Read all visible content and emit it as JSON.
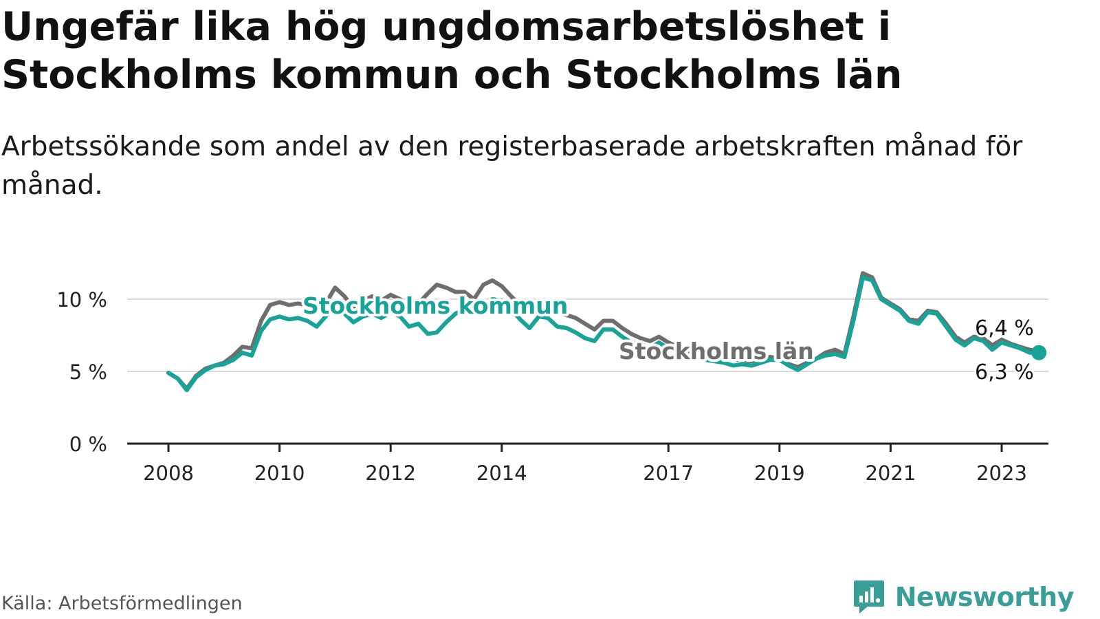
{
  "title": "Ungefär lika hög ungdomsarbetslöshet i Stockholms kommun och Stockholms län",
  "subtitle": "Arbetssökande som andel av den registerbaserade arbetskraften månad för månad.",
  "source": "Källa: Arbetsförmedlingen",
  "brand": {
    "name": "Newsworthy",
    "icon": "bar-chart-badge-icon",
    "color": "#3a9e98"
  },
  "colors": {
    "kommun": "#17a398",
    "lan": "#6e6e6e",
    "grid": "#d9d9d9",
    "axis": "#222222"
  },
  "chart_data": {
    "type": "line",
    "title": "Ungefär lika hög ungdomsarbetslöshet i Stockholms kommun och Stockholms län",
    "subtitle": "Arbetssökande som andel av den registerbaserade arbetskraften månad för månad.",
    "xlabel": "",
    "ylabel": "",
    "xlim": [
      2007.4,
      2024.0
    ],
    "ylim": [
      0,
      12
    ],
    "grid": true,
    "legend": "inline",
    "x_ticks": [
      2008,
      2010,
      2012,
      2014,
      2017,
      2019,
      2021,
      2023
    ],
    "x_tick_labels": [
      "2008",
      "2010",
      "2012",
      "2014",
      "2017",
      "2019",
      "2021",
      "2023"
    ],
    "y_ticks": [
      0,
      5,
      10
    ],
    "y_tick_labels": [
      "0 %",
      "5 %",
      "10 %"
    ],
    "series": [
      {
        "name": "Stockholms län",
        "key": "lan",
        "end_label": "6,4 %",
        "points": [
          [
            2008.0,
            4.9
          ],
          [
            2008.17,
            4.5
          ],
          [
            2008.33,
            3.8
          ],
          [
            2008.5,
            4.7
          ],
          [
            2008.67,
            5.2
          ],
          [
            2008.83,
            5.4
          ],
          [
            2009.0,
            5.6
          ],
          [
            2009.17,
            6.1
          ],
          [
            2009.33,
            6.7
          ],
          [
            2009.5,
            6.6
          ],
          [
            2009.67,
            8.5
          ],
          [
            2009.83,
            9.6
          ],
          [
            2010.0,
            9.8
          ],
          [
            2010.17,
            9.6
          ],
          [
            2010.33,
            9.7
          ],
          [
            2010.5,
            9.6
          ],
          [
            2010.67,
            9.2
          ],
          [
            2010.83,
            9.7
          ],
          [
            2011.0,
            10.8
          ],
          [
            2011.17,
            10.2
          ],
          [
            2011.33,
            9.4
          ],
          [
            2011.5,
            9.9
          ],
          [
            2011.67,
            10.2
          ],
          [
            2011.83,
            9.9
          ],
          [
            2012.0,
            10.3
          ],
          [
            2012.17,
            10.0
          ],
          [
            2012.33,
            9.3
          ],
          [
            2012.5,
            9.7
          ],
          [
            2012.67,
            10.4
          ],
          [
            2012.83,
            11.0
          ],
          [
            2013.0,
            10.8
          ],
          [
            2013.17,
            10.5
          ],
          [
            2013.33,
            10.5
          ],
          [
            2013.5,
            10.0
          ],
          [
            2013.67,
            11.0
          ],
          [
            2013.83,
            11.3
          ],
          [
            2014.0,
            10.9
          ],
          [
            2014.17,
            10.2
          ],
          [
            2014.33,
            9.6
          ],
          [
            2014.5,
            9.0
          ],
          [
            2014.67,
            9.1
          ],
          [
            2014.83,
            9.3
          ],
          [
            2015.0,
            9.1
          ],
          [
            2015.17,
            8.9
          ],
          [
            2015.33,
            8.7
          ],
          [
            2015.5,
            8.3
          ],
          [
            2015.67,
            7.9
          ],
          [
            2015.83,
            8.5
          ],
          [
            2016.0,
            8.5
          ],
          [
            2016.17,
            8.0
          ],
          [
            2016.33,
            7.6
          ],
          [
            2016.5,
            7.3
          ],
          [
            2016.67,
            7.1
          ],
          [
            2016.83,
            7.4
          ],
          [
            2017.0,
            7.0
          ],
          [
            2017.17,
            6.7
          ],
          [
            2017.33,
            6.4
          ],
          [
            2017.5,
            6.2
          ],
          [
            2017.67,
            6.1
          ],
          [
            2017.83,
            6.0
          ],
          [
            2018.0,
            5.9
          ],
          [
            2018.17,
            5.8
          ],
          [
            2018.33,
            5.8
          ],
          [
            2018.5,
            5.7
          ],
          [
            2018.67,
            5.9
          ],
          [
            2018.83,
            6.0
          ],
          [
            2019.0,
            5.9
          ],
          [
            2019.17,
            5.5
          ],
          [
            2019.33,
            5.3
          ],
          [
            2019.5,
            5.6
          ],
          [
            2019.67,
            5.9
          ],
          [
            2019.83,
            6.3
          ],
          [
            2020.0,
            6.5
          ],
          [
            2020.17,
            6.2
          ],
          [
            2020.33,
            8.8
          ],
          [
            2020.5,
            11.8
          ],
          [
            2020.67,
            11.5
          ],
          [
            2020.83,
            10.1
          ],
          [
            2021.0,
            9.7
          ],
          [
            2021.17,
            9.3
          ],
          [
            2021.33,
            8.6
          ],
          [
            2021.5,
            8.5
          ],
          [
            2021.67,
            9.2
          ],
          [
            2021.83,
            9.1
          ],
          [
            2022.0,
            8.3
          ],
          [
            2022.17,
            7.4
          ],
          [
            2022.33,
            7.0
          ],
          [
            2022.5,
            7.4
          ],
          [
            2022.67,
            7.3
          ],
          [
            2022.83,
            6.8
          ],
          [
            2023.0,
            7.2
          ],
          [
            2023.17,
            6.9
          ],
          [
            2023.33,
            6.7
          ],
          [
            2023.5,
            6.5
          ],
          [
            2023.67,
            6.4
          ]
        ]
      },
      {
        "name": "Stockholms kommun",
        "key": "kommun",
        "end_label": "6,3 %",
        "points": [
          [
            2008.0,
            4.9
          ],
          [
            2008.17,
            4.5
          ],
          [
            2008.33,
            3.7
          ],
          [
            2008.5,
            4.6
          ],
          [
            2008.67,
            5.1
          ],
          [
            2008.83,
            5.4
          ],
          [
            2009.0,
            5.5
          ],
          [
            2009.17,
            5.8
          ],
          [
            2009.33,
            6.3
          ],
          [
            2009.5,
            6.1
          ],
          [
            2009.67,
            7.8
          ],
          [
            2009.83,
            8.6
          ],
          [
            2010.0,
            8.8
          ],
          [
            2010.17,
            8.6
          ],
          [
            2010.33,
            8.7
          ],
          [
            2010.5,
            8.5
          ],
          [
            2010.67,
            8.1
          ],
          [
            2010.83,
            8.8
          ],
          [
            2011.0,
            9.6
          ],
          [
            2011.17,
            9.0
          ],
          [
            2011.33,
            8.4
          ],
          [
            2011.5,
            8.8
          ],
          [
            2011.67,
            9.0
          ],
          [
            2011.83,
            8.7
          ],
          [
            2012.0,
            9.1
          ],
          [
            2012.17,
            8.8
          ],
          [
            2012.33,
            8.1
          ],
          [
            2012.5,
            8.3
          ],
          [
            2012.67,
            7.6
          ],
          [
            2012.83,
            7.7
          ],
          [
            2013.0,
            8.4
          ],
          [
            2013.17,
            9.0
          ],
          [
            2013.33,
            9.3
          ],
          [
            2013.5,
            9.0
          ],
          [
            2013.67,
            9.4
          ],
          [
            2013.83,
            10.0
          ],
          [
            2014.0,
            9.9
          ],
          [
            2014.17,
            9.3
          ],
          [
            2014.33,
            8.6
          ],
          [
            2014.5,
            8.0
          ],
          [
            2014.67,
            8.8
          ],
          [
            2014.83,
            8.7
          ],
          [
            2015.0,
            8.1
          ],
          [
            2015.17,
            8.0
          ],
          [
            2015.33,
            7.7
          ],
          [
            2015.5,
            7.3
          ],
          [
            2015.67,
            7.1
          ],
          [
            2015.83,
            7.9
          ],
          [
            2016.0,
            7.9
          ],
          [
            2016.17,
            7.4
          ],
          [
            2016.33,
            7.0
          ],
          [
            2016.5,
            6.9
          ],
          [
            2016.67,
            6.6
          ],
          [
            2016.83,
            7.0
          ],
          [
            2017.0,
            6.6
          ],
          [
            2017.17,
            6.3
          ],
          [
            2017.33,
            6.1
          ],
          [
            2017.5,
            5.9
          ],
          [
            2017.67,
            5.8
          ],
          [
            2017.83,
            5.7
          ],
          [
            2018.0,
            5.6
          ],
          [
            2018.17,
            5.4
          ],
          [
            2018.33,
            5.5
          ],
          [
            2018.5,
            5.4
          ],
          [
            2018.67,
            5.6
          ],
          [
            2018.83,
            5.8
          ],
          [
            2019.0,
            5.8
          ],
          [
            2019.17,
            5.4
          ],
          [
            2019.33,
            5.1
          ],
          [
            2019.5,
            5.5
          ],
          [
            2019.67,
            5.9
          ],
          [
            2019.83,
            6.1
          ],
          [
            2020.0,
            6.2
          ],
          [
            2020.17,
            6.0
          ],
          [
            2020.33,
            8.5
          ],
          [
            2020.5,
            11.5
          ],
          [
            2020.67,
            11.3
          ],
          [
            2020.83,
            10.0
          ],
          [
            2021.0,
            9.6
          ],
          [
            2021.17,
            9.2
          ],
          [
            2021.33,
            8.5
          ],
          [
            2021.5,
            8.3
          ],
          [
            2021.67,
            9.1
          ],
          [
            2021.83,
            9.0
          ],
          [
            2022.0,
            8.1
          ],
          [
            2022.17,
            7.2
          ],
          [
            2022.33,
            6.8
          ],
          [
            2022.5,
            7.3
          ],
          [
            2022.67,
            7.1
          ],
          [
            2022.83,
            6.5
          ],
          [
            2023.0,
            7.0
          ],
          [
            2023.17,
            6.8
          ],
          [
            2023.33,
            6.6
          ],
          [
            2023.5,
            6.3
          ],
          [
            2023.67,
            6.3
          ]
        ]
      }
    ]
  }
}
